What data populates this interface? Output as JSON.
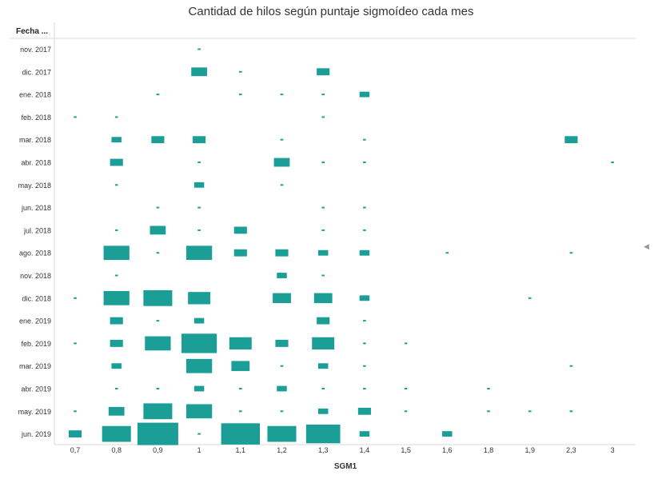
{
  "chart_data": {
    "type": "heatmap",
    "title": "Cantidad de hilos según puntaje sigmoídeo cada mes",
    "row_header": "Fecha ...",
    "xlabel": "SGM1",
    "mark": "square",
    "mark_color": "#1a9e96",
    "x": [
      "0,7",
      "0,8",
      "0,9",
      "1",
      "1,1",
      "1,2",
      "1,3",
      "1,4",
      "1,5",
      "1,6",
      "1,8",
      "1,9",
      "2,3",
      "3"
    ],
    "rows": [
      "nov. 2017",
      "dic. 2017",
      "ene. 2018",
      "feb. 2018",
      "mar. 2018",
      "abr. 2018",
      "may. 2018",
      "jun. 2018",
      "jul. 2018",
      "ago. 2018",
      "nov. 2018",
      "dic. 2018",
      "ene. 2019",
      "feb. 2019",
      "mar. 2019",
      "abr. 2019",
      "may. 2019",
      "jun. 2019"
    ],
    "size_unit": "relative",
    "cells": [
      {
        "row": "nov. 2017",
        "x": "1",
        "size": 0.005
      },
      {
        "row": "dic. 2017",
        "x": "1",
        "size": 0.15
      },
      {
        "row": "dic. 2017",
        "x": "1,1",
        "size": 0.005
      },
      {
        "row": "dic. 2017",
        "x": "1,3",
        "size": 0.1
      },
      {
        "row": "ene. 2018",
        "x": "0,9",
        "size": 0.005
      },
      {
        "row": "ene. 2018",
        "x": "1,1",
        "size": 0.005
      },
      {
        "row": "ene. 2018",
        "x": "1,2",
        "size": 0.005
      },
      {
        "row": "ene. 2018",
        "x": "1,3",
        "size": 0.005
      },
      {
        "row": "ene. 2018",
        "x": "1,4",
        "size": 0.06
      },
      {
        "row": "feb. 2018",
        "x": "0,7",
        "size": 0.005
      },
      {
        "row": "feb. 2018",
        "x": "0,8",
        "size": 0.005
      },
      {
        "row": "feb. 2018",
        "x": "1,3",
        "size": 0.005
      },
      {
        "row": "mar. 2018",
        "x": "0,8",
        "size": 0.06
      },
      {
        "row": "mar. 2018",
        "x": "0,9",
        "size": 0.1
      },
      {
        "row": "mar. 2018",
        "x": "1",
        "size": 0.1
      },
      {
        "row": "mar. 2018",
        "x": "1,2",
        "size": 0.005
      },
      {
        "row": "mar. 2018",
        "x": "1,4",
        "size": 0.005
      },
      {
        "row": "mar. 2018",
        "x": "2,3",
        "size": 0.1
      },
      {
        "row": "abr. 2018",
        "x": "0,8",
        "size": 0.1
      },
      {
        "row": "abr. 2018",
        "x": "1",
        "size": 0.005
      },
      {
        "row": "abr. 2018",
        "x": "1,2",
        "size": 0.15
      },
      {
        "row": "abr. 2018",
        "x": "1,3",
        "size": 0.005
      },
      {
        "row": "abr. 2018",
        "x": "1,4",
        "size": 0.005
      },
      {
        "row": "abr. 2018",
        "x": "3",
        "size": 0.005
      },
      {
        "row": "may. 2018",
        "x": "0,8",
        "size": 0.005
      },
      {
        "row": "may. 2018",
        "x": "1",
        "size": 0.06
      },
      {
        "row": "may. 2018",
        "x": "1,2",
        "size": 0.005
      },
      {
        "row": "jun. 2018",
        "x": "0,9",
        "size": 0.005
      },
      {
        "row": "jun. 2018",
        "x": "1",
        "size": 0.005
      },
      {
        "row": "jun. 2018",
        "x": "1,3",
        "size": 0.005
      },
      {
        "row": "jun. 2018",
        "x": "1,4",
        "size": 0.005
      },
      {
        "row": "jul. 2018",
        "x": "0,8",
        "size": 0.005
      },
      {
        "row": "jul. 2018",
        "x": "0,9",
        "size": 0.15
      },
      {
        "row": "jul. 2018",
        "x": "1",
        "size": 0.005
      },
      {
        "row": "jul. 2018",
        "x": "1,1",
        "size": 0.1
      },
      {
        "row": "jul. 2018",
        "x": "1,3",
        "size": 0.005
      },
      {
        "row": "jul. 2018",
        "x": "1,4",
        "size": 0.005
      },
      {
        "row": "ago. 2018",
        "x": "0,8",
        "size": 0.4
      },
      {
        "row": "ago. 2018",
        "x": "0,9",
        "size": 0.005
      },
      {
        "row": "ago. 2018",
        "x": "1",
        "size": 0.4
      },
      {
        "row": "ago. 2018",
        "x": "1,1",
        "size": 0.1
      },
      {
        "row": "ago. 2018",
        "x": "1,2",
        "size": 0.1
      },
      {
        "row": "ago. 2018",
        "x": "1,3",
        "size": 0.06
      },
      {
        "row": "ago. 2018",
        "x": "1,4",
        "size": 0.06
      },
      {
        "row": "ago. 2018",
        "x": "1,6",
        "size": 0.005
      },
      {
        "row": "ago. 2018",
        "x": "2,3",
        "size": 0.005
      },
      {
        "row": "nov. 2018",
        "x": "0,8",
        "size": 0.005
      },
      {
        "row": "nov. 2018",
        "x": "1,2",
        "size": 0.06
      },
      {
        "row": "nov. 2018",
        "x": "1,3",
        "size": 0.005
      },
      {
        "row": "dic. 2018",
        "x": "0,7",
        "size": 0.005
      },
      {
        "row": "dic. 2018",
        "x": "0,8",
        "size": 0.4
      },
      {
        "row": "dic. 2018",
        "x": "0,9",
        "size": 0.5
      },
      {
        "row": "dic. 2018",
        "x": "1",
        "size": 0.3
      },
      {
        "row": "dic. 2018",
        "x": "1,2",
        "size": 0.2
      },
      {
        "row": "dic. 2018",
        "x": "1,3",
        "size": 0.2
      },
      {
        "row": "dic. 2018",
        "x": "1,4",
        "size": 0.06
      },
      {
        "row": "dic. 2018",
        "x": "1,9",
        "size": 0.005
      },
      {
        "row": "ene. 2019",
        "x": "0,8",
        "size": 0.1
      },
      {
        "row": "ene. 2019",
        "x": "0,9",
        "size": 0.005
      },
      {
        "row": "ene. 2019",
        "x": "1",
        "size": 0.06
      },
      {
        "row": "ene. 2019",
        "x": "1,3",
        "size": 0.1
      },
      {
        "row": "ene. 2019",
        "x": "1,4",
        "size": 0.005
      },
      {
        "row": "feb. 2019",
        "x": "0,7",
        "size": 0.005
      },
      {
        "row": "feb. 2019",
        "x": "0,8",
        "size": 0.1
      },
      {
        "row": "feb. 2019",
        "x": "0,9",
        "size": 0.4
      },
      {
        "row": "feb. 2019",
        "x": "1",
        "size": 0.75
      },
      {
        "row": "feb. 2019",
        "x": "1,1",
        "size": 0.3
      },
      {
        "row": "feb. 2019",
        "x": "1,2",
        "size": 0.1
      },
      {
        "row": "feb. 2019",
        "x": "1,3",
        "size": 0.3
      },
      {
        "row": "feb. 2019",
        "x": "1,4",
        "size": 0.005
      },
      {
        "row": "feb. 2019",
        "x": "1,5",
        "size": 0.005
      },
      {
        "row": "mar. 2019",
        "x": "0,8",
        "size": 0.06
      },
      {
        "row": "mar. 2019",
        "x": "1",
        "size": 0.4
      },
      {
        "row": "mar. 2019",
        "x": "1,1",
        "size": 0.2
      },
      {
        "row": "mar. 2019",
        "x": "1,2",
        "size": 0.005
      },
      {
        "row": "mar. 2019",
        "x": "1,3",
        "size": 0.06
      },
      {
        "row": "mar. 2019",
        "x": "1,4",
        "size": 0.005
      },
      {
        "row": "mar. 2019",
        "x": "2,3",
        "size": 0.005
      },
      {
        "row": "abr. 2019",
        "x": "0,8",
        "size": 0.005
      },
      {
        "row": "abr. 2019",
        "x": "0,9",
        "size": 0.005
      },
      {
        "row": "abr. 2019",
        "x": "1",
        "size": 0.06
      },
      {
        "row": "abr. 2019",
        "x": "1,1",
        "size": 0.005
      },
      {
        "row": "abr. 2019",
        "x": "1,2",
        "size": 0.06
      },
      {
        "row": "abr. 2019",
        "x": "1,3",
        "size": 0.005
      },
      {
        "row": "abr. 2019",
        "x": "1,4",
        "size": 0.005
      },
      {
        "row": "abr. 2019",
        "x": "1,5",
        "size": 0.005
      },
      {
        "row": "abr. 2019",
        "x": "1,8",
        "size": 0.005
      },
      {
        "row": "may. 2019",
        "x": "0,7",
        "size": 0.005
      },
      {
        "row": "may. 2019",
        "x": "0,8",
        "size": 0.15
      },
      {
        "row": "may. 2019",
        "x": "0,9",
        "size": 0.5
      },
      {
        "row": "may. 2019",
        "x": "1",
        "size": 0.4
      },
      {
        "row": "may. 2019",
        "x": "1,1",
        "size": 0.005
      },
      {
        "row": "may. 2019",
        "x": "1,2",
        "size": 0.005
      },
      {
        "row": "may. 2019",
        "x": "1,3",
        "size": 0.06
      },
      {
        "row": "may. 2019",
        "x": "1,4",
        "size": 0.1
      },
      {
        "row": "may. 2019",
        "x": "1,5",
        "size": 0.005
      },
      {
        "row": "may. 2019",
        "x": "1,8",
        "size": 0.005
      },
      {
        "row": "may. 2019",
        "x": "1,9",
        "size": 0.005
      },
      {
        "row": "may. 2019",
        "x": "2,3",
        "size": 0.005
      },
      {
        "row": "jun. 2019",
        "x": "0,7",
        "size": 0.1
      },
      {
        "row": "jun. 2019",
        "x": "0,8",
        "size": 0.5
      },
      {
        "row": "jun. 2019",
        "x": "0,9",
        "size": 1.0
      },
      {
        "row": "jun. 2019",
        "x": "1",
        "size": 0.005
      },
      {
        "row": "jun. 2019",
        "x": "1,1",
        "size": 0.9
      },
      {
        "row": "jun. 2019",
        "x": "1,2",
        "size": 0.5
      },
      {
        "row": "jun. 2019",
        "x": "1,3",
        "size": 0.7
      },
      {
        "row": "jun. 2019",
        "x": "1,4",
        "size": 0.06
      },
      {
        "row": "jun. 2019",
        "x": "1,6",
        "size": 0.06
      }
    ]
  }
}
